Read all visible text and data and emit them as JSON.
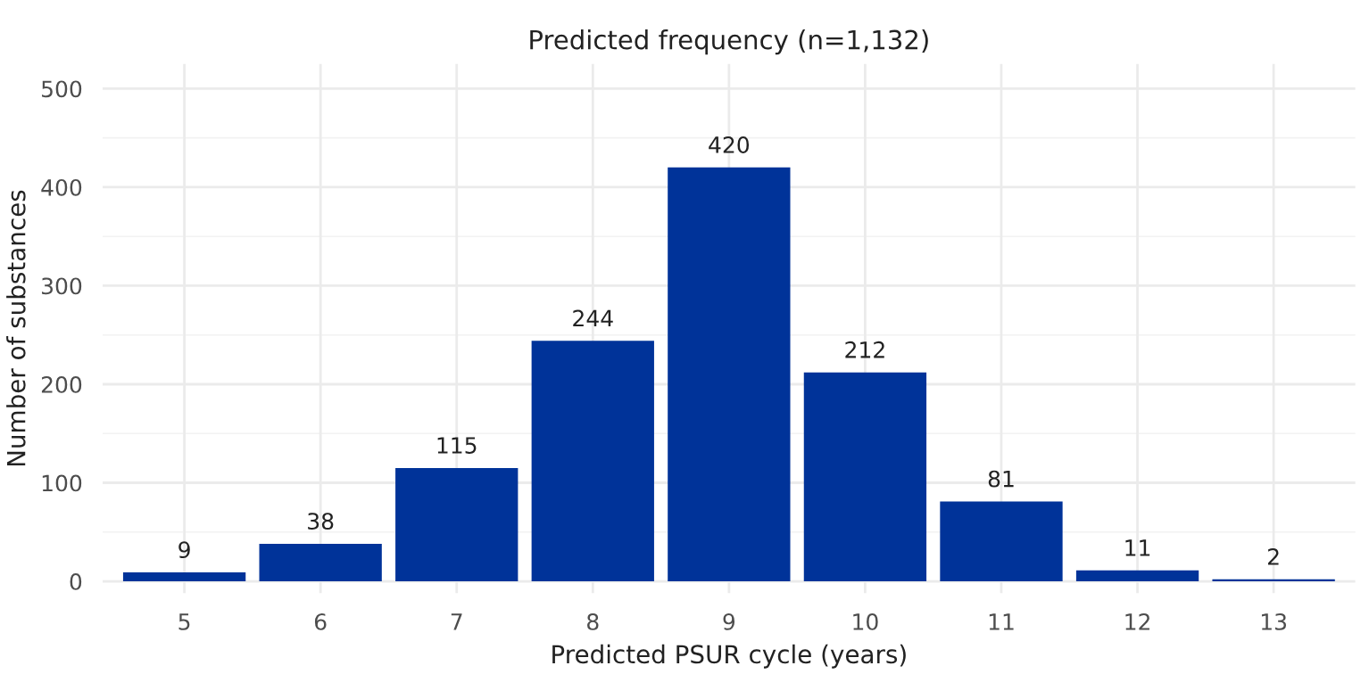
{
  "chart_data": {
    "type": "bar",
    "title": "Predicted frequency (n=1,132)",
    "xlabel": "Predicted PSUR cycle (years)",
    "ylabel": "Number of substances",
    "categories": [
      "5",
      "6",
      "7",
      "8",
      "9",
      "10",
      "11",
      "12",
      "13"
    ],
    "values": [
      9,
      38,
      115,
      244,
      420,
      212,
      81,
      11,
      2
    ],
    "color": "#003399",
    "data_labels": true,
    "ylim": [
      -12,
      525
    ],
    "yticks": [
      0,
      100,
      200,
      300,
      400,
      500
    ],
    "grid": true
  }
}
